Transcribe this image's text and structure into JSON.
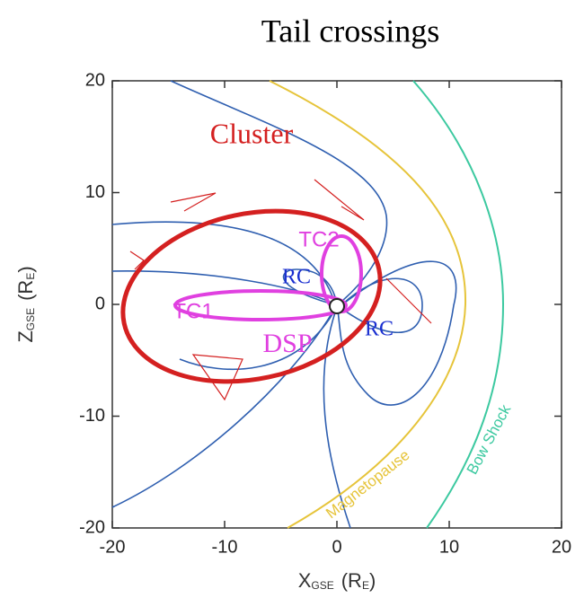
{
  "chart_data": {
    "type": "orbit-plot",
    "title": "Tail crossings",
    "x_label": "X",
    "x_label_sub": "GSE",
    "x_unit": "(R",
    "x_unit_sub": "E",
    "x_unit_end": ")",
    "y_label": "Z",
    "y_label_sub": "GSE",
    "y_unit": "(R",
    "y_unit_sub": "E",
    "y_unit_end": ")",
    "xlim": [
      -20,
      20
    ],
    "ylim": [
      -20,
      20
    ],
    "xticks": [
      -20,
      -10,
      0,
      10,
      20
    ],
    "yticks": [
      -20,
      -10,
      0,
      10,
      20
    ],
    "annotations": {
      "cluster": "Cluster",
      "tc1": "TC1",
      "tc2": "TC2",
      "rc_left": "RC",
      "rc_right": "RC",
      "dsp": "DSP",
      "magnetopause": "Magnetopause",
      "bow_shock": "Bow Shock"
    }
  }
}
